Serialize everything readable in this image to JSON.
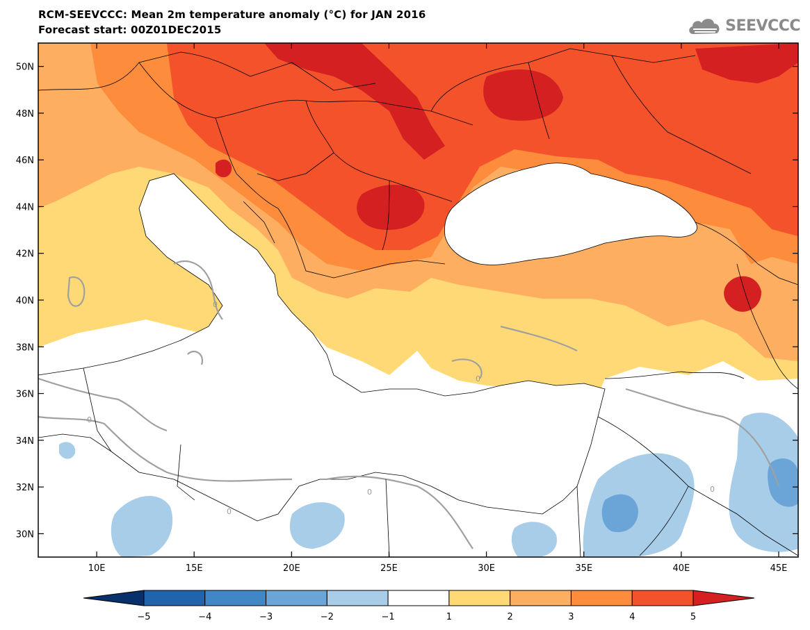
{
  "header": {
    "title": "RCM-SEEVCCC: Mean 2m temperature anomaly (°C) for JAN 2016",
    "subtitle": "Forecast start: 00Z01DEC2015"
  },
  "logo": {
    "text": "SEEVCCC",
    "icon": "cloud-icon",
    "color": "#8a8a8a"
  },
  "map": {
    "lat_ticks": [
      "30N",
      "32N",
      "34N",
      "36N",
      "38N",
      "40N",
      "42N",
      "44N",
      "46N",
      "48N",
      "50N"
    ],
    "lon_ticks": [
      "10E",
      "15E",
      "20E",
      "25E",
      "30E",
      "35E",
      "40E",
      "45E"
    ],
    "lat_range": [
      29,
      51
    ],
    "lon_range": [
      7,
      46
    ],
    "contour_label": "0"
  },
  "legend": {
    "levels": [
      "−5",
      "−4",
      "−3",
      "−2",
      "−1",
      "1",
      "2",
      "3",
      "4",
      "5"
    ],
    "colors": [
      "#08306b",
      "#1f64ad",
      "#4187c7",
      "#6ba5d7",
      "#a8cde8",
      "#ffffff",
      "#fed976",
      "#fdae61",
      "#fd8d3c",
      "#f3522a",
      "#d42020"
    ]
  }
}
